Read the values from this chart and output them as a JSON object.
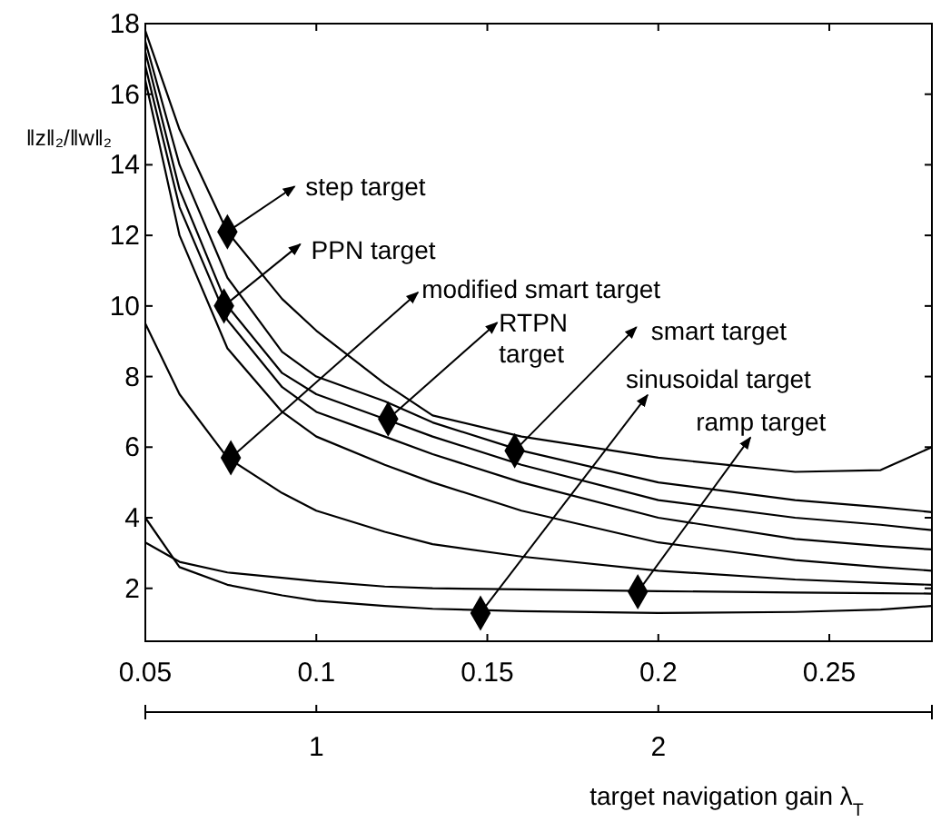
{
  "chart_data": {
    "type": "line",
    "ylabel": "‖z‖₂/‖w‖₂",
    "x2label": "target navigation gain λ$_{T}$",
    "x": [
      0.05,
      0.06,
      0.074,
      0.09,
      0.1,
      0.12,
      0.134,
      0.16,
      0.2,
      0.24,
      0.265,
      0.28
    ],
    "xlim": [
      0.05,
      0.28
    ],
    "xticks": [
      0.05,
      0.1,
      0.15,
      0.2,
      0.25
    ],
    "x2lim": [
      0.5,
      2.8
    ],
    "x2ticks": [
      1,
      2
    ],
    "ylim": [
      0.5,
      18
    ],
    "yticks": [
      2,
      4,
      6,
      8,
      10,
      12,
      14,
      16,
      18
    ],
    "grid": false,
    "marker": "none",
    "line_style": "solid",
    "series": [
      {
        "color": "#000000",
        "values": [
          17.8,
          15.0,
          12.1,
          10.2,
          9.3,
          7.8,
          6.9,
          6.3,
          5.7,
          5.3,
          5.35,
          6.0
        ]
      },
      {
        "color": "#000000",
        "values": [
          17.5,
          14.0,
          10.8,
          8.7,
          8.0,
          7.3,
          6.7,
          5.9,
          5.0,
          4.5,
          4.3,
          4.16
        ]
      },
      {
        "color": "#000000",
        "values": [
          17.2,
          13.3,
          10.0,
          8.1,
          7.5,
          6.8,
          6.3,
          5.5,
          4.5,
          4.0,
          3.8,
          3.65
        ]
      },
      {
        "color": "#000000",
        "values": [
          16.8,
          12.8,
          9.6,
          7.7,
          7.0,
          6.3,
          5.8,
          5.0,
          4.0,
          3.4,
          3.2,
          3.1
        ]
      },
      {
        "color": "#000000",
        "values": [
          16.4,
          12.0,
          8.8,
          7.0,
          6.3,
          5.5,
          5.0,
          4.2,
          3.3,
          2.8,
          2.6,
          2.5
        ]
      },
      {
        "color": "#000000",
        "values": [
          9.5,
          7.5,
          5.7,
          4.7,
          4.2,
          3.6,
          3.25,
          2.9,
          2.5,
          2.25,
          2.15,
          2.1
        ]
      },
      {
        "color": "#000000",
        "values": [
          3.3,
          2.75,
          2.45,
          2.3,
          2.2,
          2.05,
          2.0,
          1.97,
          1.92,
          1.88,
          1.86,
          1.85
        ]
      },
      {
        "color": "#000000",
        "values": [
          4.0,
          2.6,
          2.1,
          1.8,
          1.65,
          1.5,
          1.42,
          1.35,
          1.3,
          1.33,
          1.4,
          1.5
        ]
      }
    ],
    "annotations": [
      {
        "text": "step target",
        "x": 0.074,
        "y": 12.1
      },
      {
        "text": "PPN target",
        "x": 0.073,
        "y": 10.0
      },
      {
        "text": "modified smart target",
        "x": 0.075,
        "y": 5.7
      },
      {
        "text": "RTPN target",
        "x": 0.121,
        "y": 6.8
      },
      {
        "text": "smart target",
        "x": 0.158,
        "y": 5.9
      },
      {
        "text": "sinusoidal target",
        "x": 0.148,
        "y": 1.3
      },
      {
        "text": "ramp target",
        "x": 0.194,
        "y": 1.9
      }
    ]
  }
}
